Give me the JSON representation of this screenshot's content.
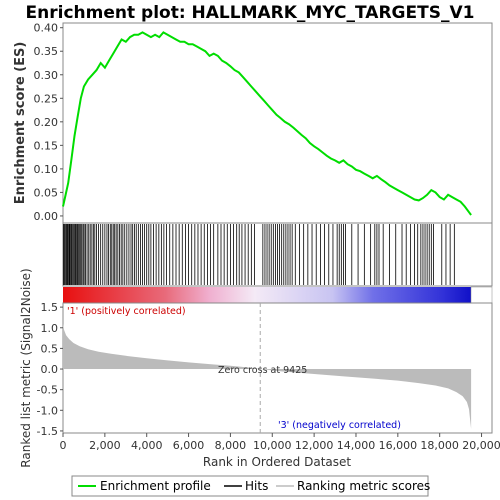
{
  "title": "Enrichment plot: HALLMARK_MYC_TARGETS_V1",
  "colors": {
    "enrichment_line": "#00dd00",
    "hits": "#000000",
    "metric_fill": "#bbbbbb",
    "positive_label": "#cc0000",
    "negative_label": "#0000cc",
    "zero_cross_line": "#aaaaaa"
  },
  "chart_data": [
    {
      "type": "line",
      "name": "enrichment-profile",
      "ylabel": "Enrichment score (ES)",
      "xlim": [
        0,
        20500
      ],
      "ylim": [
        -0.015,
        0.41
      ],
      "yticks": [
        "0.00",
        "0.05",
        "0.10",
        "0.15",
        "0.20",
        "0.25",
        "0.30",
        "0.35",
        "0.40"
      ],
      "ytick_values": [
        0,
        0.05,
        0.1,
        0.15,
        0.2,
        0.25,
        0.3,
        0.35,
        0.4
      ],
      "x": [
        0,
        100,
        250,
        400,
        550,
        700,
        850,
        1000,
        1200,
        1400,
        1600,
        1800,
        2000,
        2200,
        2400,
        2600,
        2800,
        3000,
        3200,
        3400,
        3600,
        3800,
        4000,
        4200,
        4400,
        4600,
        4800,
        5000,
        5200,
        5400,
        5600,
        5800,
        6000,
        6200,
        6400,
        6600,
        6800,
        7000,
        7200,
        7400,
        7600,
        7800,
        8000,
        8200,
        8400,
        8600,
        8800,
        9000,
        9200,
        9400,
        9600,
        9800,
        10000,
        10200,
        10400,
        10600,
        10800,
        11000,
        11200,
        11400,
        11600,
        11800,
        12000,
        12200,
        12400,
        12600,
        12800,
        13000,
        13200,
        13400,
        13600,
        13800,
        14000,
        14200,
        14400,
        14600,
        14800,
        15000,
        15200,
        15400,
        15600,
        15800,
        16000,
        16200,
        16400,
        16600,
        16800,
        17000,
        17200,
        17400,
        17600,
        17800,
        18000,
        18200,
        18400,
        18600,
        18800,
        19000,
        19200,
        19400,
        19500
      ],
      "y": [
        0.02,
        0.04,
        0.07,
        0.12,
        0.17,
        0.21,
        0.25,
        0.275,
        0.29,
        0.3,
        0.31,
        0.325,
        0.315,
        0.33,
        0.345,
        0.36,
        0.375,
        0.37,
        0.38,
        0.385,
        0.385,
        0.39,
        0.385,
        0.38,
        0.385,
        0.38,
        0.39,
        0.385,
        0.38,
        0.375,
        0.37,
        0.37,
        0.365,
        0.365,
        0.36,
        0.355,
        0.35,
        0.34,
        0.345,
        0.34,
        0.33,
        0.325,
        0.318,
        0.31,
        0.305,
        0.295,
        0.285,
        0.275,
        0.265,
        0.255,
        0.245,
        0.235,
        0.225,
        0.215,
        0.208,
        0.2,
        0.195,
        0.188,
        0.18,
        0.172,
        0.165,
        0.155,
        0.148,
        0.142,
        0.135,
        0.128,
        0.122,
        0.118,
        0.113,
        0.118,
        0.11,
        0.105,
        0.098,
        0.095,
        0.09,
        0.085,
        0.08,
        0.085,
        0.078,
        0.072,
        0.065,
        0.06,
        0.055,
        0.05,
        0.045,
        0.04,
        0.035,
        0.033,
        0.038,
        0.045,
        0.055,
        0.05,
        0.04,
        0.035,
        0.045,
        0.04,
        0.035,
        0.03,
        0.02,
        0.008,
        0.002
      ]
    },
    {
      "type": "bar",
      "name": "hits",
      "xlim": [
        0,
        20500
      ],
      "hit_ranks": [
        30,
        70,
        110,
        160,
        200,
        240,
        290,
        330,
        380,
        420,
        470,
        520,
        570,
        610,
        660,
        700,
        750,
        800,
        850,
        900,
        960,
        1010,
        1080,
        1150,
        1230,
        1300,
        1380,
        1450,
        1520,
        1600,
        1700,
        1800,
        1900,
        2000,
        2100,
        2180,
        2260,
        2330,
        2400,
        2470,
        2540,
        2620,
        2700,
        2780,
        2860,
        2950,
        3050,
        3150,
        3250,
        3330,
        3420,
        3500,
        3600,
        3700,
        3800,
        3900,
        4000,
        4100,
        4200,
        4320,
        4450,
        4580,
        4700,
        4820,
        4950,
        5100,
        5250,
        5400,
        5550,
        5700,
        5850,
        6000,
        6150,
        6300,
        6450,
        6600,
        6750,
        6900,
        7050,
        7200,
        7400,
        7550,
        7700,
        7850,
        8000,
        8150,
        8300,
        8420,
        8550,
        8700,
        8850,
        9000,
        9150,
        9550,
        9650,
        9750,
        9850,
        9950,
        10050,
        10150,
        10250,
        10350,
        10450,
        10550,
        10650,
        10750,
        10850,
        10950,
        11100,
        11300,
        11500,
        11700,
        11900,
        12100,
        12300,
        12500,
        12700,
        12900,
        13100,
        13200,
        13300,
        13400,
        13500,
        13800,
        14100,
        14400,
        14700,
        14900,
        15000,
        15100,
        15300,
        15600,
        15900,
        16200,
        16400,
        16600,
        16800,
        16950,
        17100,
        17200,
        17300,
        17400,
        17500,
        17600,
        17700,
        18100,
        18300,
        18500,
        18700
      ]
    },
    {
      "type": "area",
      "name": "ranked-list-metric",
      "xlabel": "Rank in Ordered Dataset",
      "ylabel": "Ranked list metric (Signal2Noise)",
      "xlim": [
        0,
        20500
      ],
      "ylim": [
        -1.55,
        1.6
      ],
      "xticks": [
        "0",
        "2,000",
        "4,000",
        "6,000",
        "8,000",
        "10,000",
        "12,000",
        "14,000",
        "16,000",
        "18,000",
        "20,000"
      ],
      "xtick_values": [
        0,
        2000,
        4000,
        6000,
        8000,
        10000,
        12000,
        14000,
        16000,
        18000,
        20000
      ],
      "yticks": [
        "1.5",
        "1.0",
        "0.5",
        "0.0",
        "-0.5",
        "-1.0",
        "-1.5"
      ],
      "ytick_values": [
        1.5,
        1.0,
        0.5,
        0.0,
        -0.5,
        -1.0,
        -1.5
      ],
      "x": [
        0,
        50,
        150,
        300,
        500,
        800,
        1200,
        1700,
        2300,
        3000,
        4000,
        5000,
        6000,
        7000,
        8000,
        9000,
        9425,
        10500,
        12000,
        13500,
        15000,
        16000,
        17000,
        17800,
        18400,
        18800,
        19100,
        19300,
        19400,
        19450,
        19500
      ],
      "y": [
        1.1,
        0.95,
        0.82,
        0.72,
        0.63,
        0.55,
        0.48,
        0.42,
        0.37,
        0.32,
        0.26,
        0.21,
        0.16,
        0.12,
        0.08,
        0.03,
        0.0,
        -0.06,
        -0.12,
        -0.18,
        -0.24,
        -0.28,
        -0.34,
        -0.4,
        -0.47,
        -0.56,
        -0.66,
        -0.8,
        -0.97,
        -1.2,
        -1.45
      ],
      "zero_cross_rank": 9425,
      "zero_cross_label": "Zero cross at 9425",
      "positive_label": "'1' (positively correlated)",
      "negative_label": "'3' (negatively correlated)"
    }
  ],
  "legend": {
    "items": [
      {
        "label": "Enrichment profile",
        "color": "#00dd00"
      },
      {
        "label": "Hits",
        "color": "#000000"
      },
      {
        "label": "Ranking metric scores",
        "color": "#bbbbbb"
      }
    ]
  }
}
